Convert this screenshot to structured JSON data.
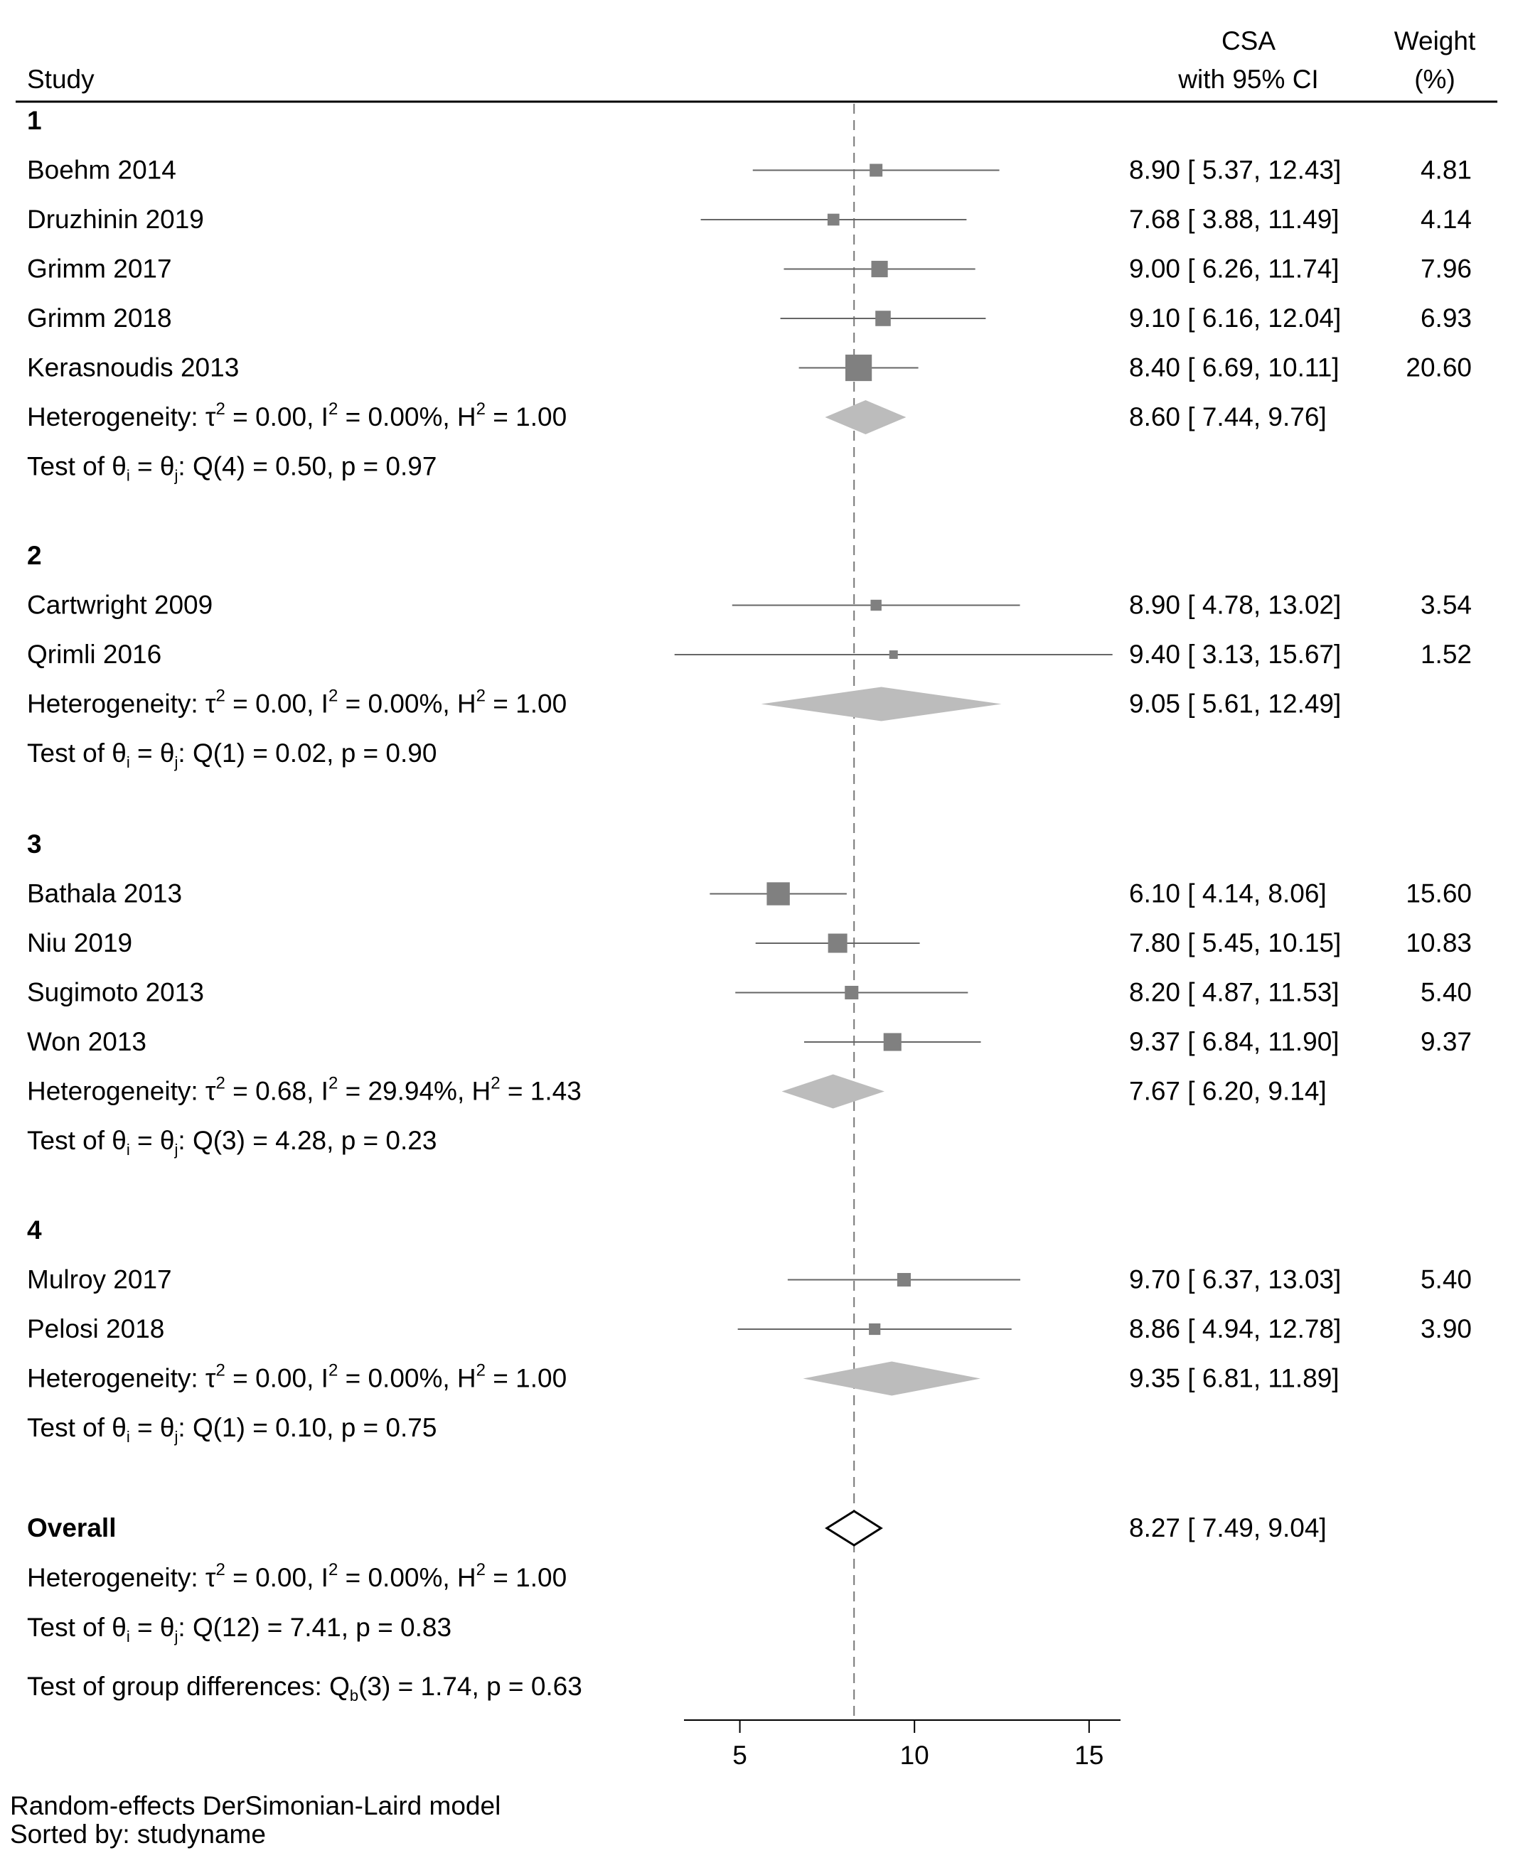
{
  "header": {
    "study_label": "Study",
    "csa_label": "CSA",
    "ci_label": "with 95% CI",
    "weight_label": "Weight",
    "weight_unit": "(%)"
  },
  "chart_data": {
    "type": "forest",
    "x_ticks": [
      5,
      10,
      15
    ],
    "xlim": [
      3.4,
      15.9
    ],
    "reference_line": 8.27,
    "colors": {
      "study_square": "#808080",
      "subgroup_diamond": "#bcbcbc",
      "overall_diamond": "#ffffff",
      "ci_line": "#666666"
    },
    "groups": [
      {
        "label": "1",
        "studies": [
          {
            "name": "Boehm 2014",
            "est": 8.9,
            "lo": 5.37,
            "hi": 12.43,
            "ci_text": "8.90 [ 5.37,  12.43]",
            "weight": 4.81,
            "weight_text": "4.81"
          },
          {
            "name": "Druzhinin 2019",
            "est": 7.68,
            "lo": 3.88,
            "hi": 11.49,
            "ci_text": "7.68 [ 3.88,  11.49]",
            "weight": 4.14,
            "weight_text": "4.14"
          },
          {
            "name": "Grimm 2017",
            "est": 9.0,
            "lo": 6.26,
            "hi": 11.74,
            "ci_text": "9.00 [ 6.26,  11.74]",
            "weight": 7.96,
            "weight_text": "7.96"
          },
          {
            "name": "Grimm 2018",
            "est": 9.1,
            "lo": 6.16,
            "hi": 12.04,
            "ci_text": "9.10 [ 6.16,  12.04]",
            "weight": 6.93,
            "weight_text": "6.93"
          },
          {
            "name": "Kerasnoudis 2013",
            "est": 8.4,
            "lo": 6.69,
            "hi": 10.11,
            "ci_text": "8.40 [ 6.69,  10.11]",
            "weight": 20.6,
            "weight_text": "20.60"
          }
        ],
        "heterogeneity": {
          "tau2": "0.00",
          "i2": "0.00%",
          "h2": "1.00"
        },
        "pooled": {
          "est": 8.6,
          "lo": 7.44,
          "hi": 9.76,
          "ci_text": "8.60 [ 7.44,    9.76]"
        },
        "test": {
          "df": "4",
          "q": "0.50",
          "p": "0.97"
        }
      },
      {
        "label": "2",
        "studies": [
          {
            "name": "Cartwright 2009",
            "est": 8.9,
            "lo": 4.78,
            "hi": 13.02,
            "ci_text": "8.90 [ 4.78,  13.02]",
            "weight": 3.54,
            "weight_text": "3.54"
          },
          {
            "name": "Qrimli 2016",
            "est": 9.4,
            "lo": 3.13,
            "hi": 15.67,
            "ci_text": "9.40 [ 3.13,  15.67]",
            "weight": 1.52,
            "weight_text": "1.52"
          }
        ],
        "heterogeneity": {
          "tau2": "0.00",
          "i2": "0.00%",
          "h2": "1.00"
        },
        "pooled": {
          "est": 9.05,
          "lo": 5.61,
          "hi": 12.49,
          "ci_text": "9.05 [ 5.61,  12.49]"
        },
        "test": {
          "df": "1",
          "q": "0.02",
          "p": "0.90"
        }
      },
      {
        "label": "3",
        "studies": [
          {
            "name": "Bathala 2013",
            "est": 6.1,
            "lo": 4.14,
            "hi": 8.06,
            "ci_text": "6.10 [ 4.14,    8.06]",
            "weight": 15.6,
            "weight_text": "15.60"
          },
          {
            "name": "Niu 2019",
            "est": 7.8,
            "lo": 5.45,
            "hi": 10.15,
            "ci_text": "7.80 [ 5.45,  10.15]",
            "weight": 10.83,
            "weight_text": "10.83"
          },
          {
            "name": "Sugimoto 2013",
            "est": 8.2,
            "lo": 4.87,
            "hi": 11.53,
            "ci_text": "8.20 [ 4.87,  11.53]",
            "weight": 5.4,
            "weight_text": "5.40"
          },
          {
            "name": "Won 2013",
            "est": 9.37,
            "lo": 6.84,
            "hi": 11.9,
            "ci_text": "9.37 [ 6.84,  11.90]",
            "weight": 9.37,
            "weight_text": "9.37"
          }
        ],
        "heterogeneity": {
          "tau2": "0.68",
          "i2": "29.94%",
          "h2": "1.43"
        },
        "pooled": {
          "est": 7.67,
          "lo": 6.2,
          "hi": 9.14,
          "ci_text": "7.67 [ 6.20,    9.14]"
        },
        "test": {
          "df": "3",
          "q": "4.28",
          "p": "0.23"
        }
      },
      {
        "label": "4",
        "studies": [
          {
            "name": "Mulroy 2017",
            "est": 9.7,
            "lo": 6.37,
            "hi": 13.03,
            "ci_text": "9.70 [ 6.37,  13.03]",
            "weight": 5.4,
            "weight_text": "5.40"
          },
          {
            "name": "Pelosi 2018",
            "est": 8.86,
            "lo": 4.94,
            "hi": 12.78,
            "ci_text": "8.86 [ 4.94,  12.78]",
            "weight": 3.9,
            "weight_text": "3.90"
          }
        ],
        "heterogeneity": {
          "tau2": "0.00",
          "i2": "0.00%",
          "h2": "1.00"
        },
        "pooled": {
          "est": 9.35,
          "lo": 6.81,
          "hi": 11.89,
          "ci_text": "9.35 [ 6.81,  11.89]"
        },
        "test": {
          "df": "1",
          "q": "0.10",
          "p": "0.75"
        }
      }
    ],
    "overall": {
      "label": "Overall",
      "est": 8.27,
      "lo": 7.49,
      "hi": 9.04,
      "ci_text": "8.27 [ 7.49,    9.04]",
      "heterogeneity": {
        "tau2": "0.00",
        "i2": "0.00%",
        "h2": "1.00"
      },
      "test": {
        "df": "12",
        "q": "7.41",
        "p": "0.83"
      }
    },
    "group_test": {
      "df": "3",
      "q": "1.74",
      "p": "0.63"
    }
  },
  "footer": {
    "model_note": "Random-effects DerSimonian-Laird model",
    "sort_note": "Sorted by: studyname"
  }
}
